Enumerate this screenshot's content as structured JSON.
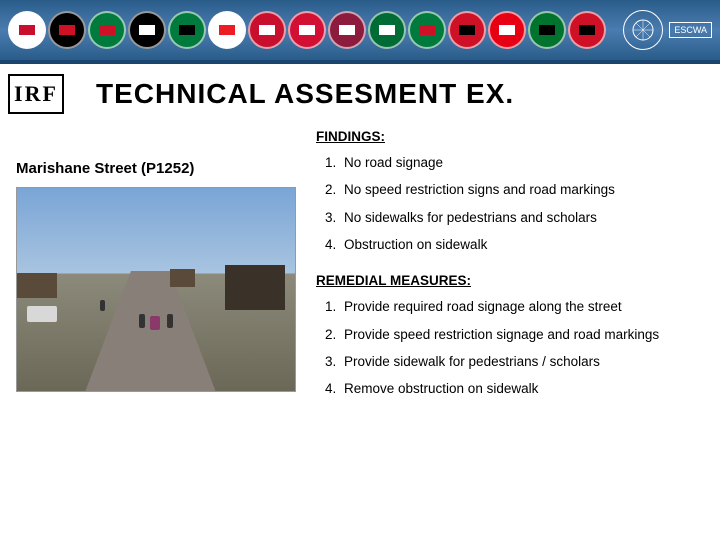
{
  "banner": {
    "flags": [
      {
        "bg": "#ffffff",
        "inner": "#c8102e"
      },
      {
        "bg": "#000000",
        "inner": "#ce1126"
      },
      {
        "bg": "#007a3d",
        "inner": "#ce1126"
      },
      {
        "bg": "#000000",
        "inner": "#ffffff"
      },
      {
        "bg": "#007a3d",
        "inner": "#000000"
      },
      {
        "bg": "#ffffff",
        "inner": "#ed1c24"
      },
      {
        "bg": "#c8102e",
        "inner": "#ffffff"
      },
      {
        "bg": "#d21034",
        "inner": "#ffffff"
      },
      {
        "bg": "#8d1b3d",
        "inner": "#ffffff"
      },
      {
        "bg": "#006c35",
        "inner": "#ffffff"
      },
      {
        "bg": "#007a3d",
        "inner": "#ce1126"
      },
      {
        "bg": "#ce1126",
        "inner": "#000000"
      },
      {
        "bg": "#e70013",
        "inner": "#ffffff"
      },
      {
        "bg": "#00732f",
        "inner": "#000000"
      },
      {
        "bg": "#ce1126",
        "inner": "#000000"
      }
    ],
    "escwa": "ESCWA",
    "irf": "IRF"
  },
  "title": "TECHNICAL  ASSESMENT  EX.",
  "street_label": "Marishane Street (P1252)",
  "findings": {
    "heading": "FINDINGS:",
    "items": [
      "No road signage",
      "No speed restriction signs and road markings",
      "No sidewalks for pedestrians and scholars",
      "Obstruction on sidewalk"
    ]
  },
  "remedial": {
    "heading": "REMEDIAL MEASURES:",
    "items": [
      "Provide required road signage along the street",
      "Provide speed restriction signage and road markings",
      "Provide sidewalk for pedestrians / scholars",
      "Remove obstruction on sidewalk"
    ]
  }
}
